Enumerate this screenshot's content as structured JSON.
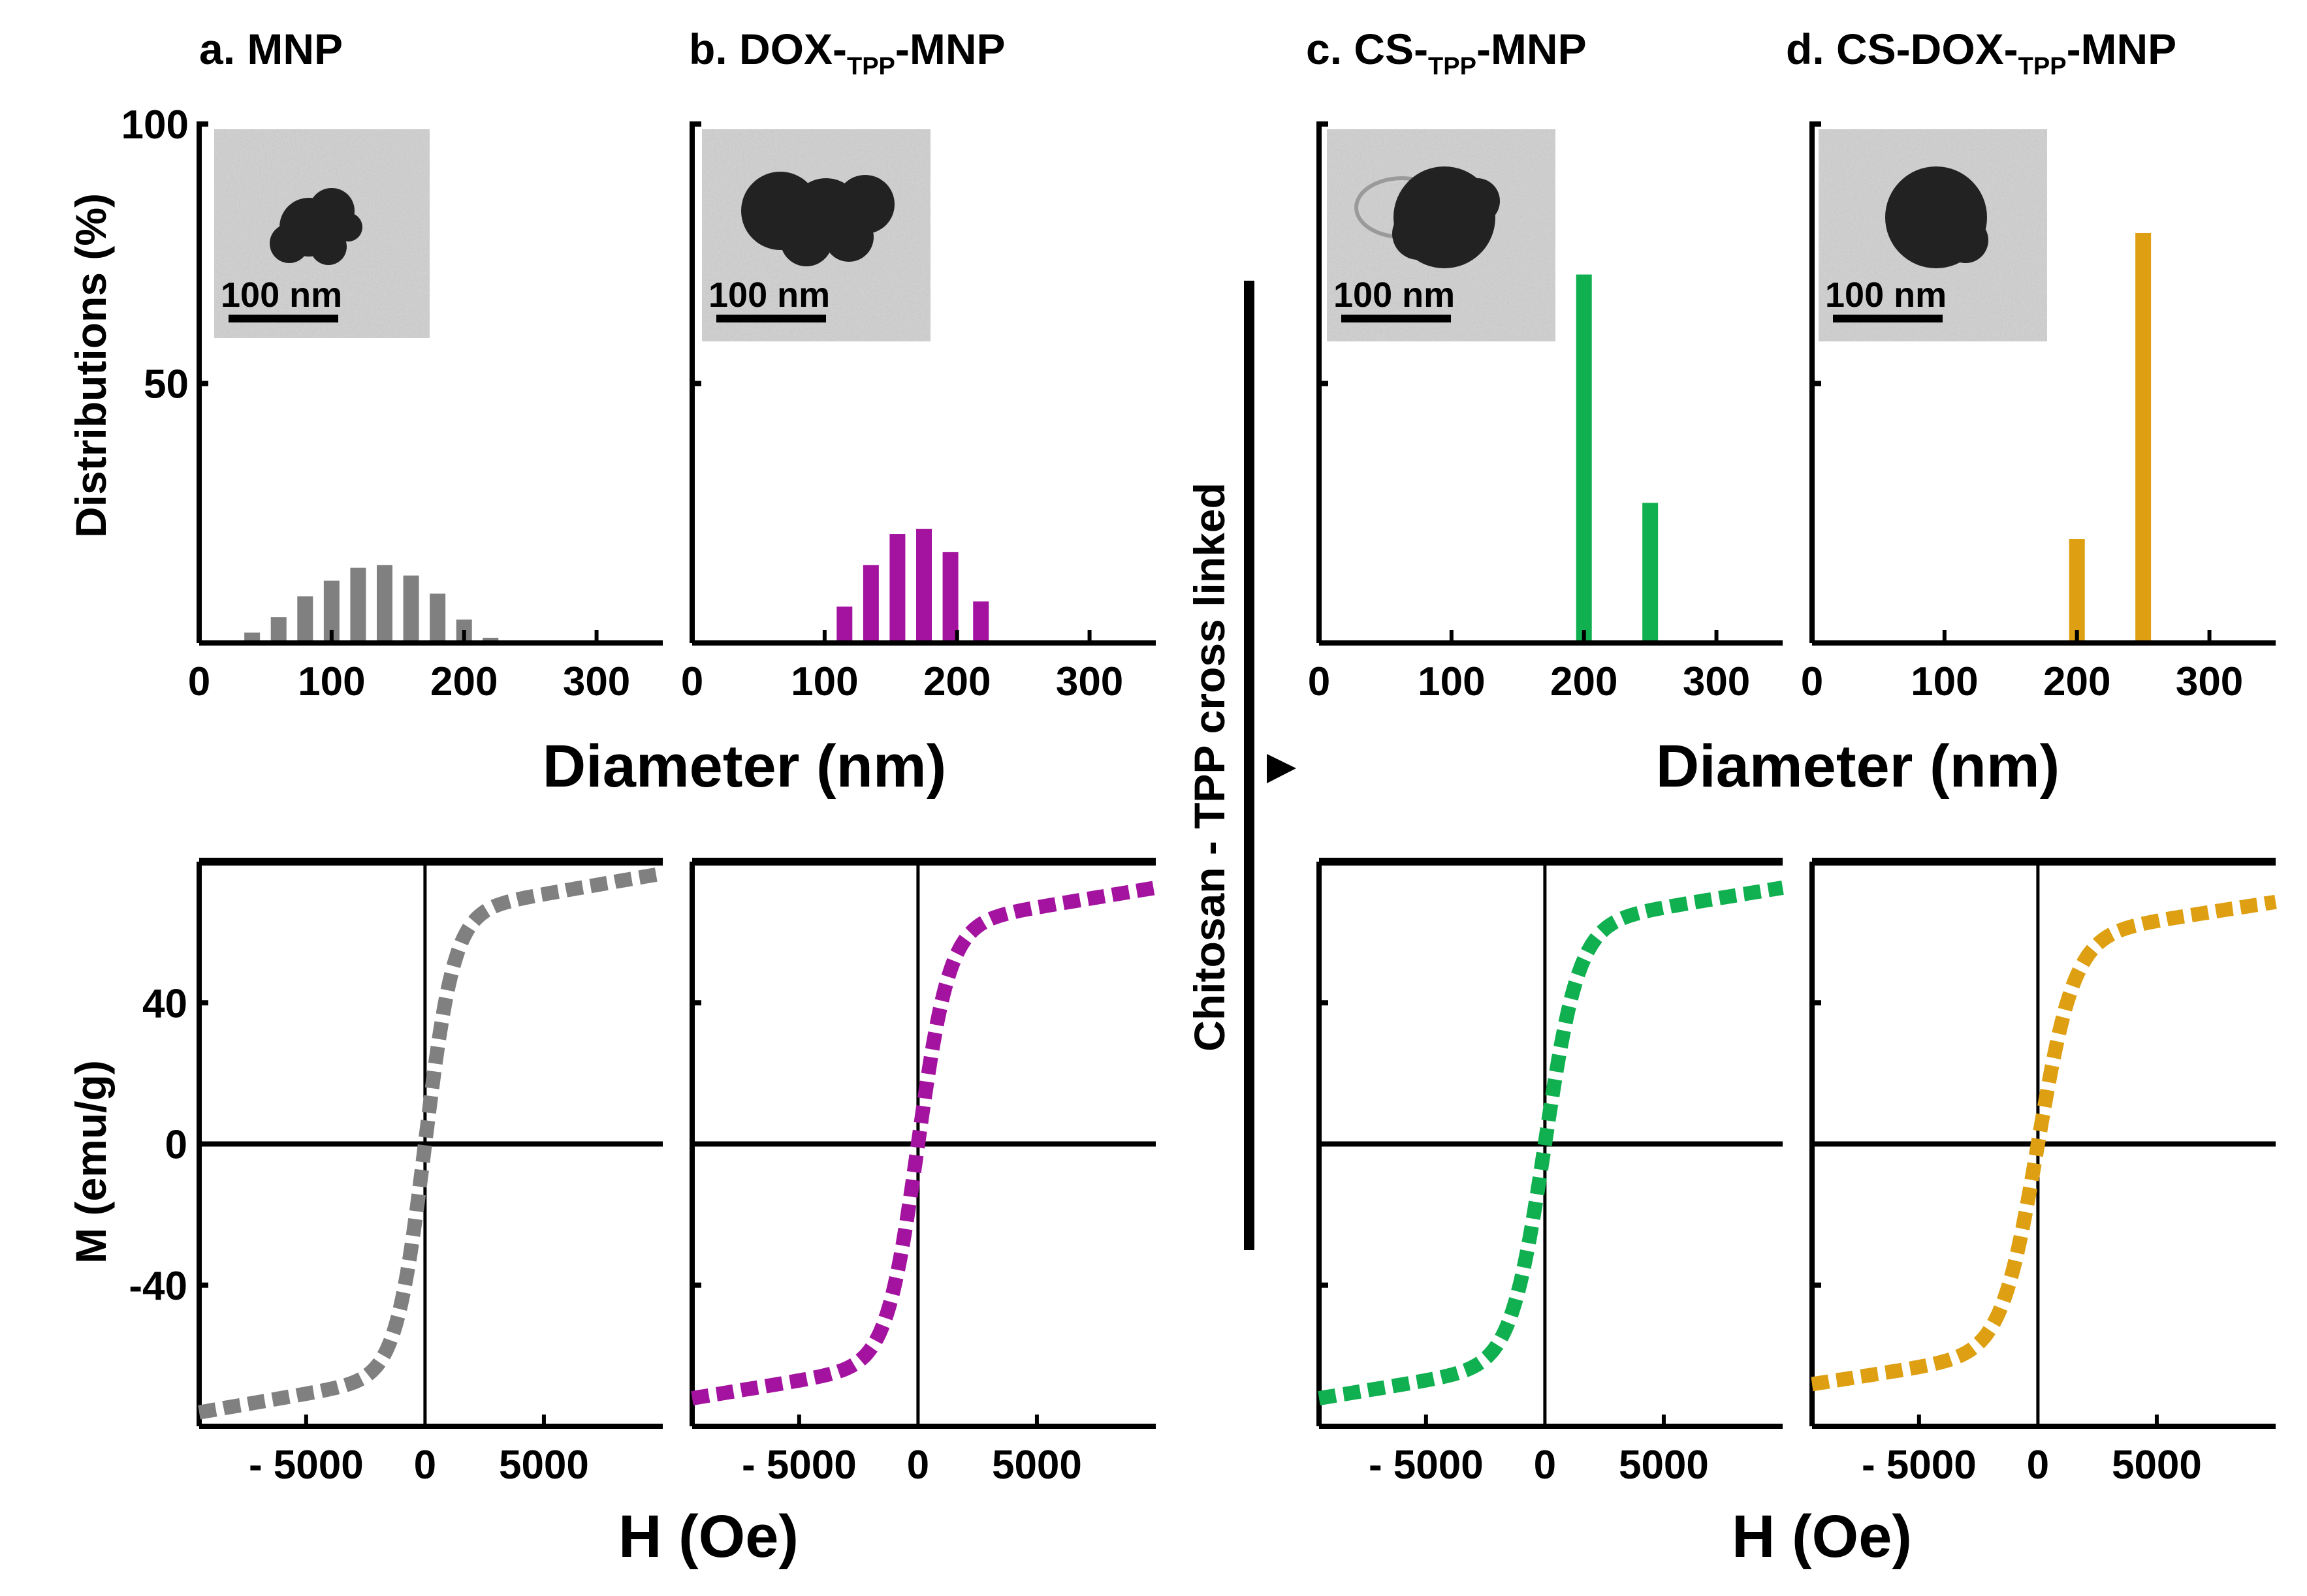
{
  "colors": {
    "MNP": "#808080",
    "DOX-TPP-MNP": "#a3139f",
    "CS-TPP-MNP": "#10b050",
    "CS-DOX-TPP-MNP": "#dea012",
    "axis": "#000000",
    "tem_bg": "#cfcfcf",
    "tem_particle": "#222222"
  },
  "figure": {
    "separator_label": "Chitosan - TPP cross linked",
    "arrow_icon": "right-arrow-icon",
    "dist_xlabel": "Diameter (nm)",
    "dist_ylabel": "Distributions (%)",
    "mag_xlabel": "H (Oe)",
    "mag_ylabel": "M (emu/g)",
    "scale_bar_label": "100 nm"
  },
  "panels": [
    {
      "prefix": "a. MNP",
      "sub": "",
      "suffix": ""
    },
    {
      "prefix": "b. DOX-",
      "sub": "TPP",
      "suffix": "-MNP"
    },
    {
      "prefix": "c. CS-",
      "sub": "TPP",
      "suffix": "-MNP"
    },
    {
      "prefix": "d. CS-DOX-",
      "sub": "TPP",
      "suffix": "-MNP"
    }
  ],
  "chart_data": [
    {
      "type": "bar",
      "panel": "a. MNP",
      "title": "a. MNP",
      "xlabel": "Diameter (nm)",
      "ylabel": "Distributions (%)",
      "xlim": [
        0,
        350
      ],
      "ylim": [
        0,
        100
      ],
      "xticks": [
        0,
        100,
        200,
        300
      ],
      "yticks": [
        50,
        100
      ],
      "x": [
        40,
        60,
        80,
        100,
        120,
        140,
        160,
        180,
        200,
        220
      ],
      "values": [
        2,
        5,
        9,
        12,
        14.5,
        15,
        13,
        9.5,
        4.5,
        1
      ],
      "color": "#808080"
    },
    {
      "type": "bar",
      "panel": "b. DOX-TPP-MNP",
      "title": "b. DOX-TPP-MNP",
      "xlabel": "Diameter (nm)",
      "ylabel": "Distributions (%)",
      "xlim": [
        0,
        350
      ],
      "ylim": [
        0,
        100
      ],
      "xticks": [
        0,
        100,
        200,
        300
      ],
      "yticks": [
        50,
        100
      ],
      "x": [
        115,
        135,
        155,
        175,
        195,
        218,
        250
      ],
      "values": [
        7,
        15,
        21,
        22,
        17.5,
        8,
        0
      ],
      "color": "#a3139f"
    },
    {
      "type": "bar",
      "panel": "c. CS-TPP-MNP",
      "title": "c. CS-TPP-MNP",
      "xlabel": "Diameter (nm)",
      "ylabel": "Distributions (%)",
      "xlim": [
        0,
        350
      ],
      "ylim": [
        0,
        100
      ],
      "xticks": [
        0,
        100,
        200,
        300
      ],
      "yticks": [
        50,
        100
      ],
      "x": [
        200,
        250
      ],
      "values": [
        71,
        27
      ],
      "color": "#10b050"
    },
    {
      "type": "bar",
      "panel": "d. CS-DOX-TPP-MNP",
      "title": "d. CS-DOX-TPP-MNP",
      "xlabel": "Diameter (nm)",
      "ylabel": "Distributions (%)",
      "xlim": [
        0,
        350
      ],
      "ylim": [
        0,
        100
      ],
      "xticks": [
        0,
        100,
        200,
        300
      ],
      "yticks": [
        50,
        100
      ],
      "x": [
        200,
        250
      ],
      "values": [
        20,
        79
      ],
      "color": "#dea012"
    },
    {
      "type": "line",
      "panel": "a. MNP",
      "title": "a. MNP",
      "xlabel": "H (Oe)",
      "ylabel": "M (emu/g)",
      "xlim": [
        -9500,
        10000
      ],
      "ylim": [
        -80,
        80
      ],
      "xticks": [
        -5000,
        0,
        5000
      ],
      "yticks": [
        -40,
        0,
        40
      ],
      "x_tick_labels": [
        "- 5000",
        "0",
        "5000"
      ],
      "Ms": 76,
      "Hk": 1200,
      "color": "#808080"
    },
    {
      "type": "line",
      "panel": "b. DOX-TPP-MNP",
      "title": "b. DOX-TPP-MNP",
      "xlabel": "H (Oe)",
      "ylabel": "M (emu/g)",
      "xlim": [
        -9500,
        10000
      ],
      "ylim": [
        -80,
        80
      ],
      "xticks": [
        -5000,
        0,
        5000
      ],
      "yticks": [
        -40,
        0,
        40
      ],
      "x_tick_labels": [
        "- 5000",
        "0",
        "5000"
      ],
      "Ms": 72,
      "Hk": 1300,
      "color": "#a3139f"
    },
    {
      "type": "line",
      "panel": "c. CS-TPP-MNP",
      "title": "c. CS-TPP-MNP",
      "xlabel": "H (Oe)",
      "ylabel": "M (emu/g)",
      "xlim": [
        -9500,
        10000
      ],
      "ylim": [
        -80,
        80
      ],
      "xticks": [
        -5000,
        0,
        5000
      ],
      "yticks": [
        -40,
        0,
        40
      ],
      "x_tick_labels": [
        "- 5000",
        "0",
        "5000"
      ],
      "Ms": 72,
      "Hk": 1400,
      "color": "#10b050"
    },
    {
      "type": "line",
      "panel": "d. CS-DOX-TPP-MNP",
      "title": "d. CS-DOX-TPP-MNP",
      "xlabel": "H (Oe)",
      "ylabel": "M (emu/g)",
      "xlim": [
        -9500,
        10000
      ],
      "ylim": [
        -80,
        80
      ],
      "xticks": [
        -5000,
        0,
        5000
      ],
      "yticks": [
        -40,
        0,
        40
      ],
      "x_tick_labels": [
        "- 5000",
        "0",
        "5000"
      ],
      "Ms": 68,
      "Hk": 1500,
      "color": "#dea012"
    }
  ]
}
